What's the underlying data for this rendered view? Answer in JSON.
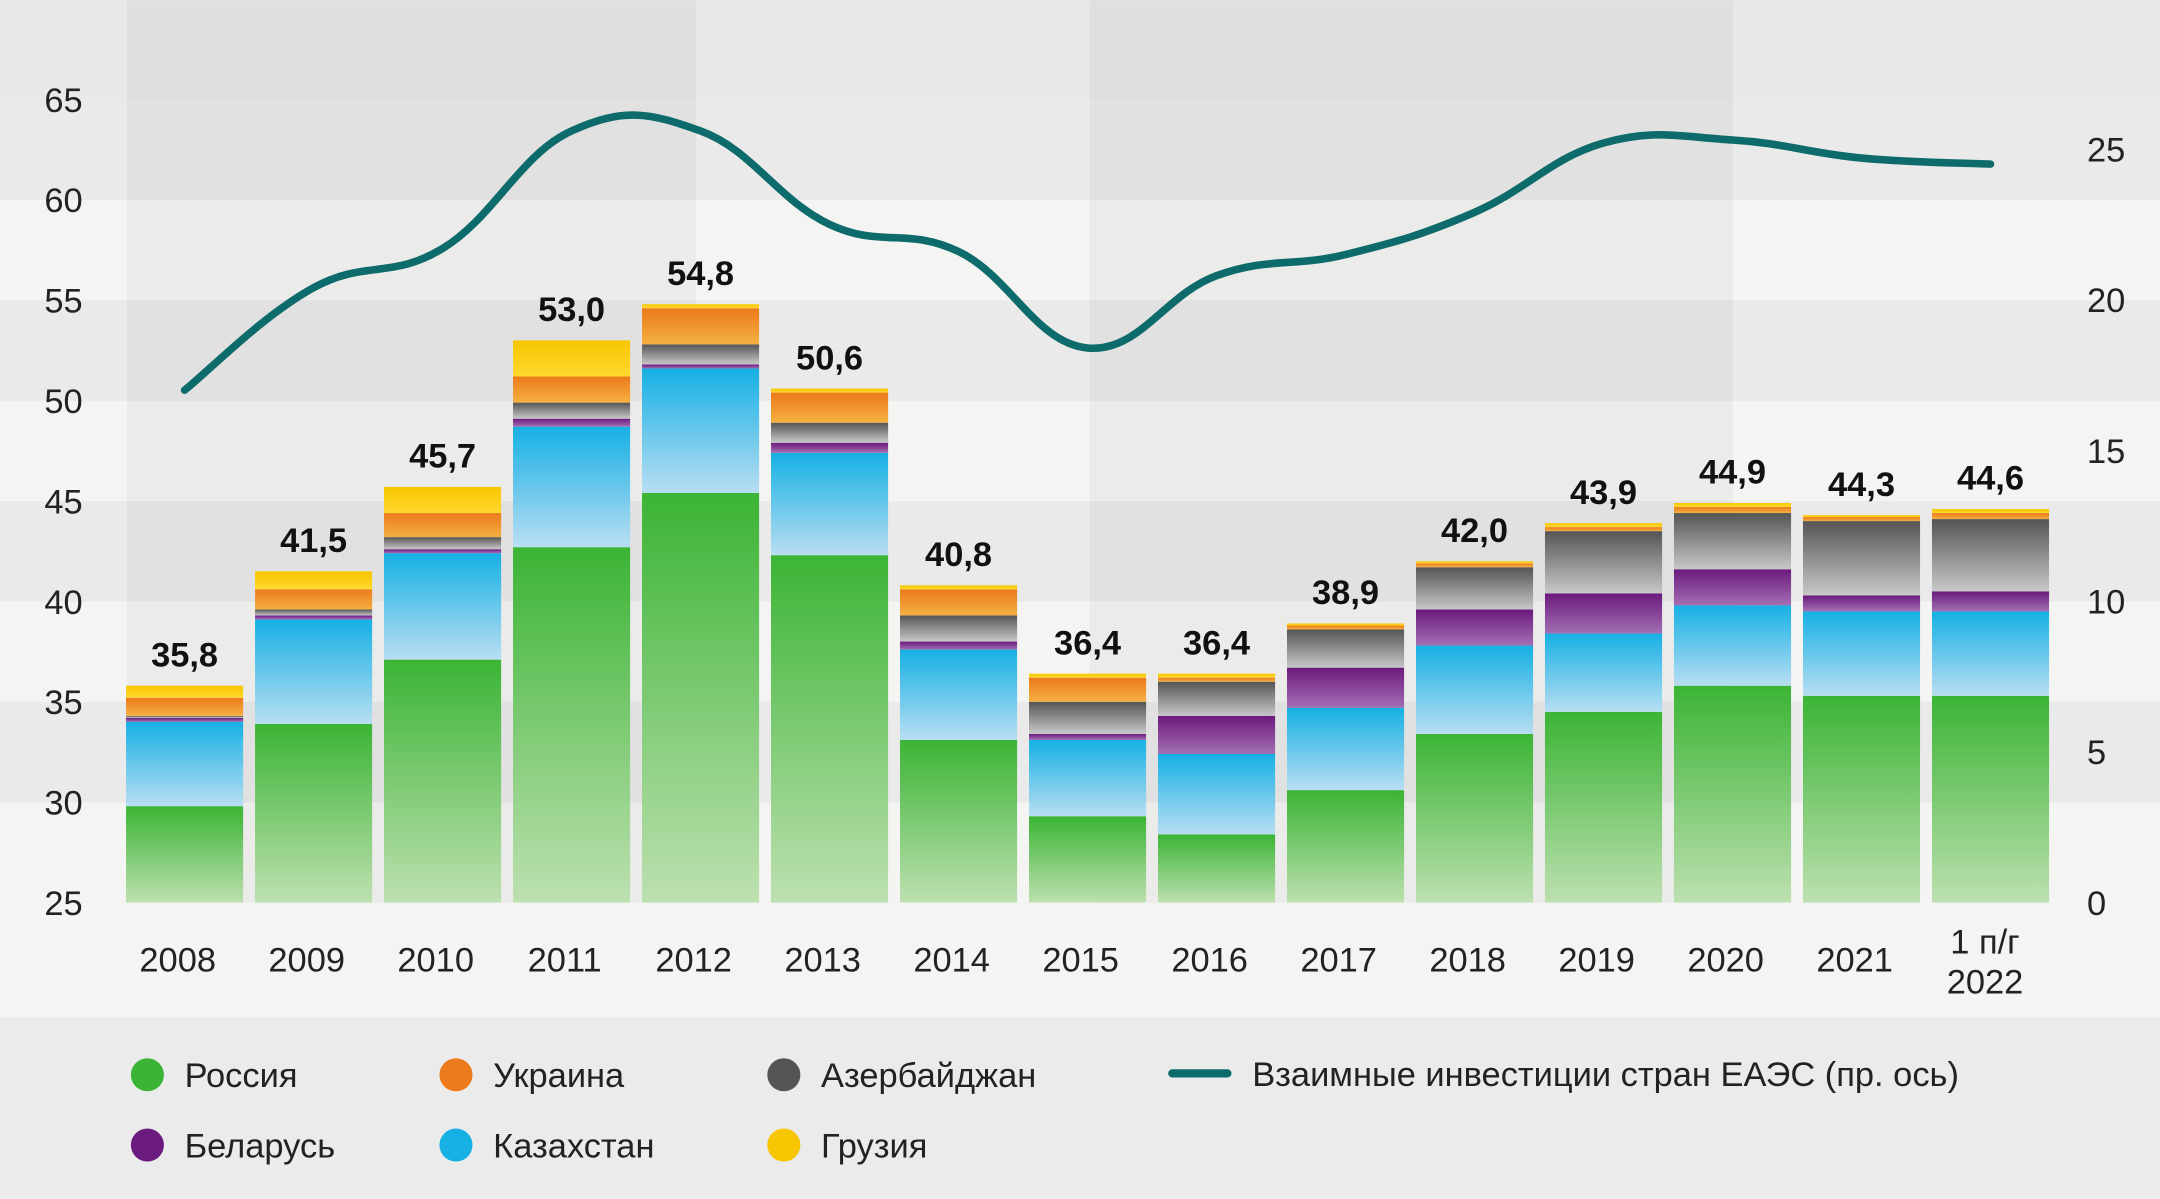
{
  "chart_data": {
    "type": "bar",
    "stacked": true,
    "secondary_line": true,
    "categories": [
      "2008",
      "2009",
      "2010",
      "2011",
      "2012",
      "2013",
      "2014",
      "2015",
      "2016",
      "2017",
      "2018",
      "2019",
      "2020",
      "2021",
      "1 п/г 2022"
    ],
    "category_lines": [
      [
        "2008"
      ],
      [
        "2009"
      ],
      [
        "2010"
      ],
      [
        "2011"
      ],
      [
        "2012"
      ],
      [
        "2013"
      ],
      [
        "2014"
      ],
      [
        "2015"
      ],
      [
        "2016"
      ],
      [
        "2017"
      ],
      [
        "2018"
      ],
      [
        "2019"
      ],
      [
        "2020"
      ],
      [
        "2021"
      ],
      [
        "1 п/г",
        "2022"
      ]
    ],
    "totals_labels": [
      "35,8",
      "41,5",
      "45,7",
      "53,0",
      "54,8",
      "50,6",
      "40,8",
      "36,4",
      "36,4",
      "38,9",
      "42,0",
      "43,9",
      "44,9",
      "44,3",
      "44,6"
    ],
    "series": [
      {
        "name": "Россия",
        "color": "#3bb435",
        "values": [
          29.8,
          33.9,
          37.1,
          42.7,
          45.4,
          42.3,
          33.1,
          29.3,
          28.4,
          30.6,
          33.4,
          34.5,
          35.8,
          35.3,
          35.3
        ]
      },
      {
        "name": "Казахстан",
        "color": "#16b0e4",
        "values": [
          4.2,
          5.2,
          5.3,
          6.0,
          6.2,
          5.1,
          4.5,
          3.8,
          4.0,
          4.1,
          4.4,
          3.9,
          4.0,
          4.2,
          4.2
        ]
      },
      {
        "name": "Беларусь",
        "color": "#6b1a7e",
        "values": [
          0.2,
          0.2,
          0.2,
          0.4,
          0.2,
          0.5,
          0.4,
          0.3,
          1.9,
          2.0,
          1.8,
          2.0,
          1.8,
          0.8,
          1.0
        ]
      },
      {
        "name": "Азербайджан",
        "color": "#555555",
        "values": [
          0.1,
          0.3,
          0.6,
          0.8,
          1.0,
          1.0,
          1.3,
          1.6,
          1.7,
          1.9,
          2.1,
          3.1,
          2.8,
          3.7,
          3.6
        ]
      },
      {
        "name": "Украина",
        "color": "#ec7a1c",
        "values": [
          0.9,
          1.0,
          1.2,
          1.3,
          1.8,
          1.5,
          1.3,
          1.2,
          0.2,
          0.2,
          0.2,
          0.2,
          0.3,
          0.2,
          0.3
        ]
      },
      {
        "name": "Грузия",
        "color": "#f7c600",
        "values": [
          0.6,
          0.9,
          1.3,
          1.8,
          0.2,
          0.2,
          0.2,
          0.2,
          0.2,
          0.1,
          0.1,
          0.2,
          0.2,
          0.1,
          0.2
        ]
      }
    ],
    "line": {
      "name": "Взаимные инвестиции стран ЕАЭС (пр. ось)",
      "color": "#0e6b6b",
      "axis": "right",
      "values": [
        17.0,
        20.4,
        21.7,
        25.6,
        25.6,
        22.5,
        21.6,
        18.4,
        20.8,
        21.5,
        22.9,
        25.2,
        25.3,
        24.7,
        24.5
      ]
    },
    "y_left": {
      "range": [
        25,
        65
      ],
      "ticks": [
        "25",
        "30",
        "35",
        "40",
        "45",
        "50",
        "55",
        "60",
        "65"
      ]
    },
    "y_right": {
      "range": [
        0,
        26.7
      ],
      "ticks": [
        "0",
        "5",
        "10",
        "15",
        "20",
        "25"
      ]
    },
    "legend_placement": "bottom",
    "grid": "alternating bands"
  }
}
